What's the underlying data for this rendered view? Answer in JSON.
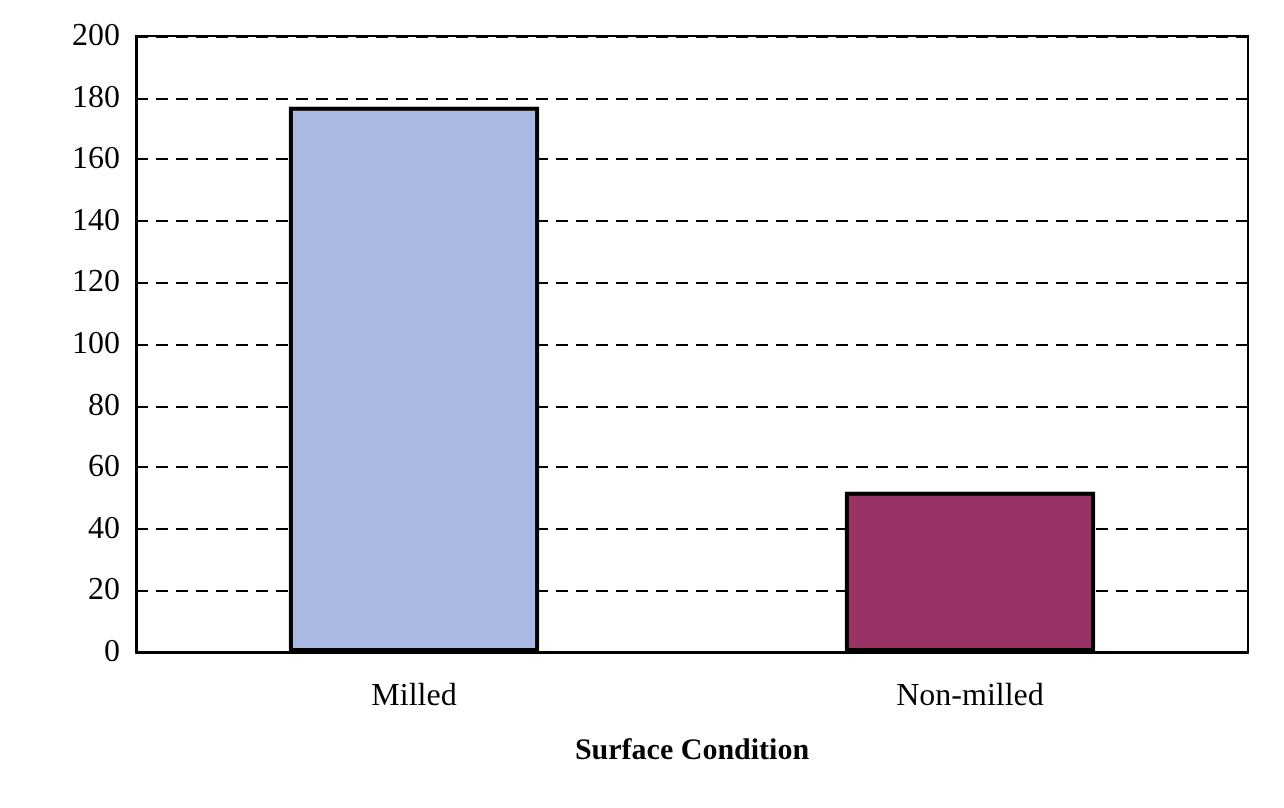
{
  "chart_data": {
    "type": "bar",
    "xlabel": "Surface Condition",
    "categories": [
      "Milled",
      "Non-milled"
    ],
    "values": [
      177,
      52
    ],
    "colors": [
      "#a9b9e3",
      "#993366"
    ],
    "ylim": [
      0,
      200
    ],
    "yticks": [
      0,
      20,
      40,
      60,
      80,
      100,
      120,
      140,
      160,
      180,
      200
    ],
    "grid": "y"
  }
}
